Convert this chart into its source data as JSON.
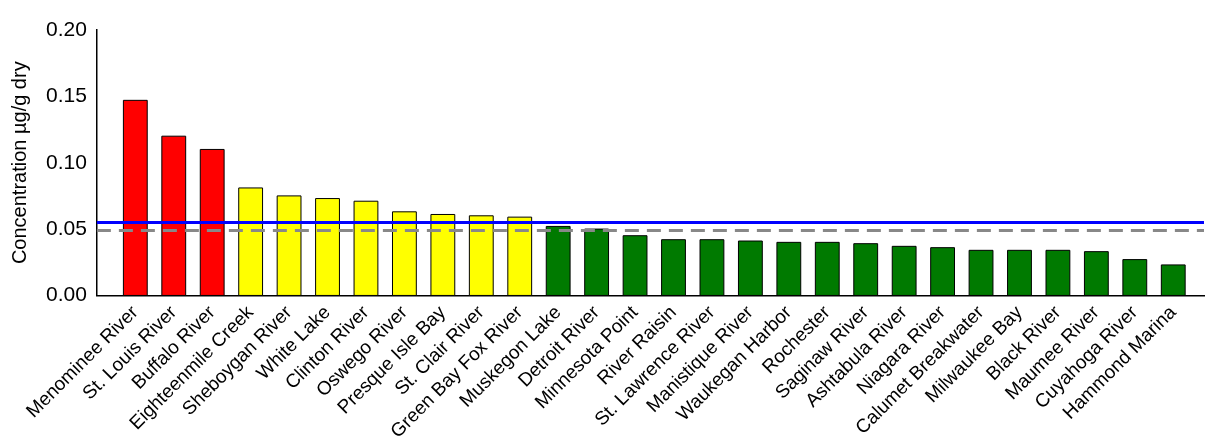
{
  "chart_data": {
    "type": "bar",
    "ylabel": "Concentration µg/g dry",
    "categories": [
      "Menominee River",
      "St. Louis River",
      "Buffalo River",
      "Eighteenmile Creek",
      "Sheboygan River",
      "White Lake",
      "Clinton River",
      "Oswego River",
      "Presque Isle Bay",
      "St. Clair River",
      "Green Bay Fox River",
      "Muskegon Lake",
      "Detroit River",
      "Minnesota Point",
      "River Raisin",
      "St. Lawrence River",
      "Manistique River",
      "Waukegan Harbor",
      "Rochester",
      "Saginaw River",
      "Ashtabula River",
      "Niagara River",
      "Calumet Breakwater",
      "Milwaukee Bay",
      "Black River",
      "Maumee River",
      "Cuyahoga River",
      "Hammond Marina"
    ],
    "values": [
      0.147,
      0.12,
      0.11,
      0.081,
      0.075,
      0.073,
      0.071,
      0.063,
      0.061,
      0.06,
      0.059,
      0.052,
      0.05,
      0.045,
      0.042,
      0.042,
      0.041,
      0.04,
      0.04,
      0.039,
      0.037,
      0.036,
      0.034,
      0.034,
      0.034,
      0.033,
      0.027,
      0.023
    ],
    "colors": [
      "#ff0000",
      "#ff0000",
      "#ff0000",
      "#ffff00",
      "#ffff00",
      "#ffff00",
      "#ffff00",
      "#ffff00",
      "#ffff00",
      "#ffff00",
      "#ffff00",
      "#007a00",
      "#007a00",
      "#007a00",
      "#007a00",
      "#007a00",
      "#007a00",
      "#007a00",
      "#007a00",
      "#007a00",
      "#007a00",
      "#007a00",
      "#007a00",
      "#007a00",
      "#007a00",
      "#007a00",
      "#007a00",
      "#007a00"
    ],
    "ylim": [
      0,
      0.2
    ],
    "yticks": [
      {
        "value": 0,
        "label": "0.00"
      },
      {
        "value": 0.05,
        "label": "0.05"
      },
      {
        "value": 0.1,
        "label": "0.10"
      },
      {
        "value": 0.15,
        "label": "0.15"
      },
      {
        "value": 0.2,
        "label": "0.20"
      }
    ],
    "grid": false,
    "legend": false,
    "ref_lines": [
      {
        "axis": "y",
        "value": 0.055,
        "color": "#0000ff",
        "line_style": "solid"
      },
      {
        "axis": "y",
        "value": 0.049,
        "color": "#888888",
        "line_style": "dashed"
      }
    ]
  }
}
